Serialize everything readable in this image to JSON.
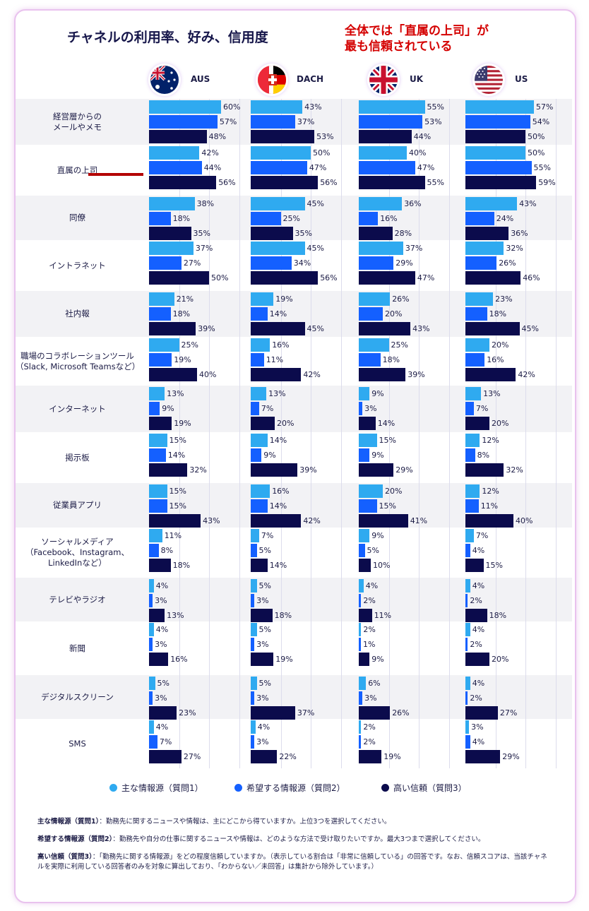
{
  "title": "チャネルの利用率、好み、信用度",
  "callout": {
    "line1": "全体では「直属の上司」が",
    "line2": "最も信頼されている"
  },
  "colors": {
    "primary": "#2faaf0",
    "preferred": "#1460ff",
    "trust": "#0b0b4c",
    "callout": "#d40000"
  },
  "regions": [
    {
      "label": "AUS",
      "icon": "australia-flag-icon"
    },
    {
      "label": "DACH",
      "icon": "dach-flag-icon"
    },
    {
      "label": "UK",
      "icon": "uk-flag-icon"
    },
    {
      "label": "US",
      "icon": "us-flag-icon"
    }
  ],
  "chart_data": {
    "type": "bar",
    "orientation": "horizontal",
    "title": "チャネルの利用率、好み、信用度",
    "unit": "%",
    "xlim": [
      0,
      100
    ],
    "series": [
      {
        "name": "主な情報源（質問1）",
        "color": "#2faaf0"
      },
      {
        "name": "希望する情報源（質問2）",
        "color": "#1460ff"
      },
      {
        "name": "高い信頼（質問3）",
        "color": "#0b0b4c"
      }
    ],
    "groups": [
      "AUS",
      "DACH",
      "UK",
      "US"
    ],
    "highlight": "直属の上司",
    "categories": [
      {
        "label": [
          "経営層からの",
          "メールやメモ"
        ],
        "values": [
          [
            60,
            57,
            48
          ],
          [
            43,
            37,
            53
          ],
          [
            55,
            53,
            44
          ],
          [
            57,
            54,
            50
          ]
        ]
      },
      {
        "label": [
          "直属の上司"
        ],
        "values": [
          [
            42,
            44,
            56
          ],
          [
            50,
            47,
            56
          ],
          [
            40,
            47,
            55
          ],
          [
            50,
            55,
            59
          ]
        ]
      },
      {
        "label": [
          "同僚"
        ],
        "values": [
          [
            38,
            18,
            35
          ],
          [
            45,
            25,
            35
          ],
          [
            36,
            16,
            28
          ],
          [
            43,
            24,
            36
          ]
        ]
      },
      {
        "label": [
          "イントラネット"
        ],
        "values": [
          [
            37,
            27,
            50
          ],
          [
            45,
            34,
            56
          ],
          [
            37,
            29,
            47
          ],
          [
            32,
            26,
            46
          ]
        ]
      },
      {
        "label": [
          "社内報"
        ],
        "values": [
          [
            21,
            18,
            39
          ],
          [
            19,
            14,
            45
          ],
          [
            26,
            20,
            43
          ],
          [
            23,
            18,
            45
          ]
        ]
      },
      {
        "label": [
          "職場のコラボレーションツール",
          "（Slack, Microsoft Teamsなど）"
        ],
        "values": [
          [
            25,
            19,
            40
          ],
          [
            16,
            11,
            42
          ],
          [
            25,
            18,
            39
          ],
          [
            20,
            16,
            42
          ]
        ]
      },
      {
        "label": [
          "インターネット"
        ],
        "values": [
          [
            13,
            9,
            19
          ],
          [
            13,
            7,
            20
          ],
          [
            9,
            3,
            14
          ],
          [
            13,
            7,
            20
          ]
        ]
      },
      {
        "label": [
          "掲示板"
        ],
        "values": [
          [
            15,
            14,
            32
          ],
          [
            14,
            9,
            39
          ],
          [
            15,
            9,
            29
          ],
          [
            12,
            8,
            32
          ]
        ]
      },
      {
        "label": [
          "従業員アプリ"
        ],
        "values": [
          [
            15,
            15,
            43
          ],
          [
            16,
            14,
            42
          ],
          [
            20,
            15,
            41
          ],
          [
            12,
            11,
            40
          ]
        ]
      },
      {
        "label": [
          "ソーシャルメディア",
          "（Facebook、Instagram、",
          "LinkedInなど）"
        ],
        "values": [
          [
            11,
            8,
            18
          ],
          [
            7,
            5,
            14
          ],
          [
            9,
            5,
            10
          ],
          [
            7,
            4,
            15
          ]
        ]
      },
      {
        "label": [
          "テレビやラジオ"
        ],
        "values": [
          [
            4,
            3,
            13
          ],
          [
            5,
            3,
            18
          ],
          [
            4,
            2,
            11
          ],
          [
            4,
            2,
            18
          ]
        ]
      },
      {
        "label": [
          "新聞"
        ],
        "values": [
          [
            4,
            3,
            16
          ],
          [
            5,
            3,
            19
          ],
          [
            2,
            1,
            9
          ],
          [
            4,
            2,
            20
          ]
        ]
      },
      {
        "label": [
          "デジタルスクリーン"
        ],
        "values": [
          [
            5,
            3,
            23
          ],
          [
            5,
            3,
            37
          ],
          [
            6,
            3,
            26
          ],
          [
            4,
            2,
            27
          ]
        ]
      },
      {
        "label": [
          "SMS"
        ],
        "values": [
          [
            4,
            7,
            27
          ],
          [
            4,
            3,
            22
          ],
          [
            2,
            2,
            19
          ],
          [
            3,
            4,
            29
          ]
        ]
      }
    ]
  },
  "legend": [
    {
      "label": "主な情報源（質問1）"
    },
    {
      "label": "希望する情報源（質問2）"
    },
    {
      "label": "高い信頼（質問3）"
    }
  ],
  "footnotes": [
    {
      "term": "主な情報源（質問1）",
      "text": "：勤務先に関するニュースや情報は、主にどこから得ていますか。上位3つを選択してください。"
    },
    {
      "term": "希望する情報源（質問2）",
      "text": "：勤務先や自分の仕事に関するニュースや情報は、どのような方法で受け取りたいですか。最大3つまで選択してください。"
    },
    {
      "term": "高い信頼（質問3）",
      "text": "：「勤務先に関する情報源」をどの程度信頼していますか。（表示している割合は「非常に信頼している」の回答です。なお、信頼スコアは、当該チャネルを実際に利用している回答者のみを対象に算出しており、「わからない／未回答」は集計から除外しています。）"
    }
  ]
}
